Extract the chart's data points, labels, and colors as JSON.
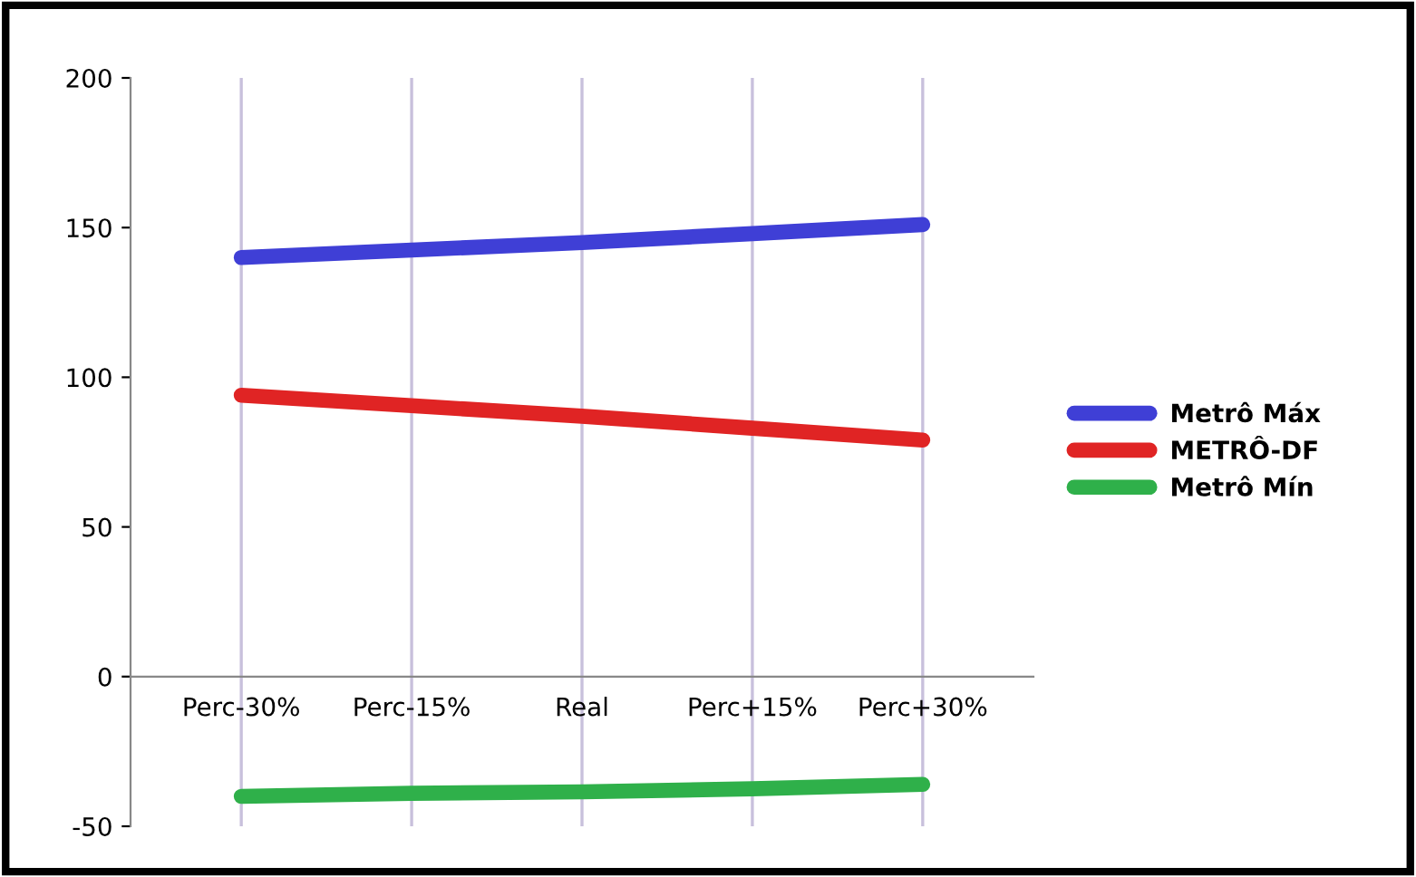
{
  "chart_data": {
    "type": "line",
    "categories": [
      "Perc-30%",
      "Perc-15%",
      "Real",
      "Perc+15%",
      "Perc+30%"
    ],
    "series": [
      {
        "name": "Metrô Máx",
        "color": "#3f3fd6",
        "values": [
          140,
          142.5,
          145,
          148,
          151
        ]
      },
      {
        "name": "METRÔ-DF",
        "color": "#e02424",
        "values": [
          94,
          90.5,
          87,
          83,
          79
        ]
      },
      {
        "name": "Metrô Mín",
        "color": "#2fb04a",
        "values": [
          -40,
          -39,
          -38.5,
          -37.5,
          -36
        ]
      }
    ],
    "ylim": [
      -50,
      200
    ],
    "yticks": [
      -50,
      0,
      50,
      100,
      150,
      200
    ],
    "grid": "x",
    "legend": "right",
    "marker": "none",
    "line_style": "solid"
  }
}
